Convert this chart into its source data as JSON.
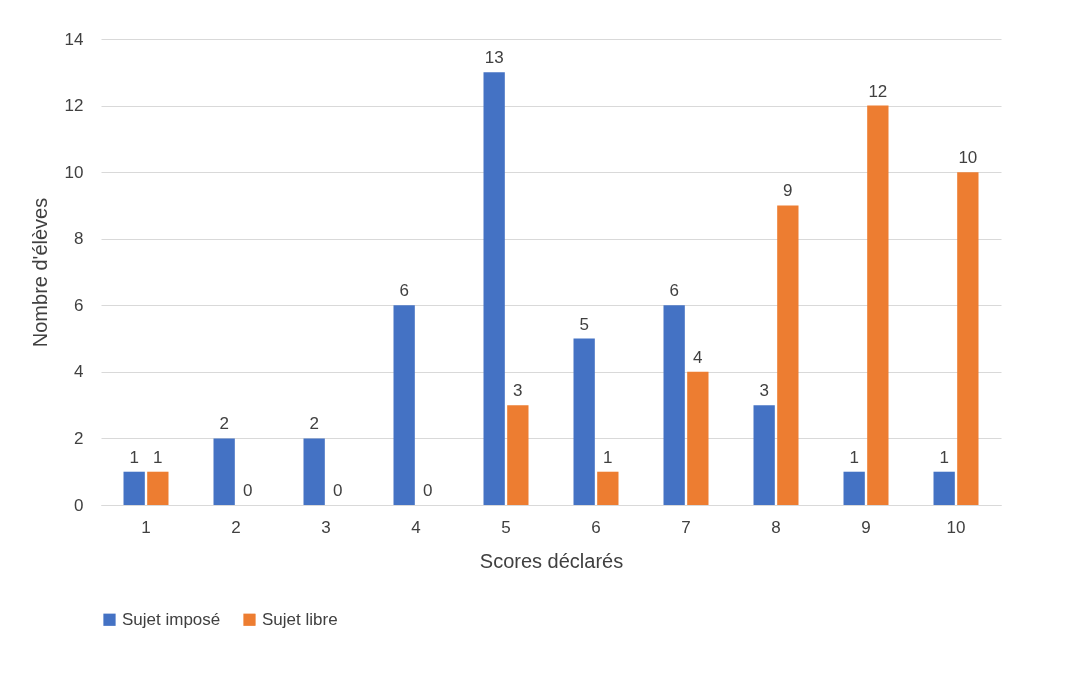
{
  "chart_data": {
    "type": "bar",
    "xlabel": "Scores déclarés",
    "ylabel": "Nombre d'élèves",
    "categories": [
      "1",
      "2",
      "3",
      "4",
      "5",
      "6",
      "7",
      "8",
      "9",
      "10"
    ],
    "series": [
      {
        "name": "Sujet imposé",
        "color": "#4472c4",
        "values": [
          1,
          2,
          2,
          6,
          13,
          5,
          6,
          3,
          1,
          1
        ]
      },
      {
        "name": "Sujet libre",
        "color": "#ed7d31",
        "values": [
          1,
          0,
          0,
          0,
          3,
          1,
          4,
          9,
          12,
          10
        ]
      }
    ],
    "ylim": [
      0,
      14
    ],
    "yticks": [
      0,
      2,
      4,
      6,
      8,
      10,
      12,
      14
    ],
    "grid": "y",
    "legend": "bottom",
    "data_labels": true
  }
}
